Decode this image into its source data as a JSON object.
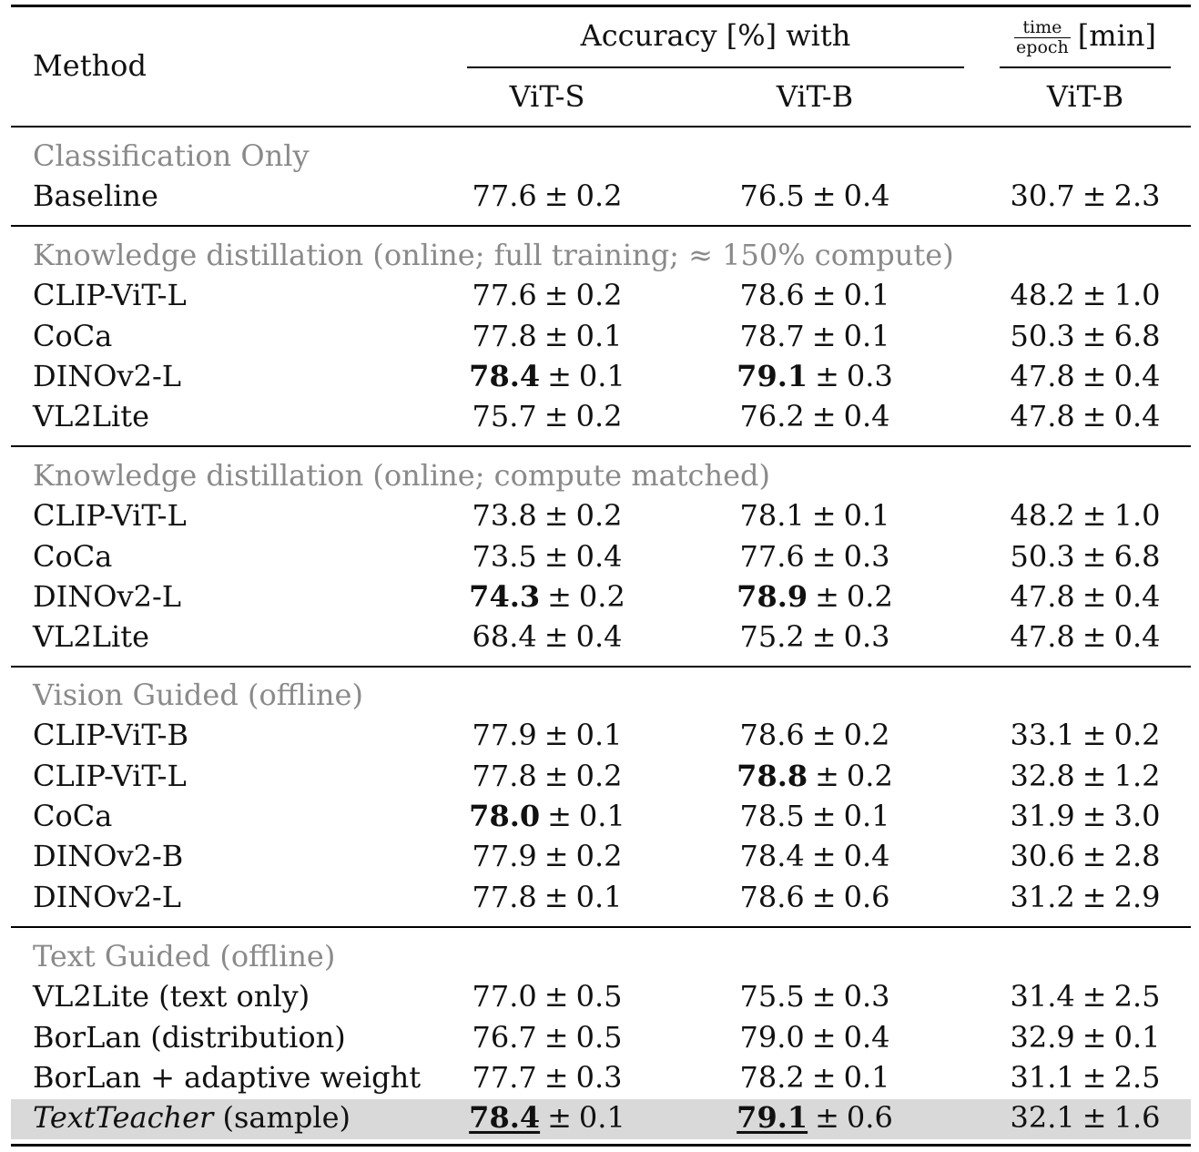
{
  "header": {
    "method": "Method",
    "accuracy": "Accuracy [%] with",
    "time_num": "time",
    "time_den": "epoch",
    "time_unit": "[min]",
    "col_vit_s": "ViT-S",
    "col_vit_b": "ViT-B",
    "col_time_vit_b": "ViT-B"
  },
  "groups": [
    {
      "title": "Classification Only",
      "rows": [
        {
          "method": "Baseline",
          "s_val": "77.6",
          "s_std": "0.2",
          "b_val": "76.5",
          "b_std": "0.4",
          "t_val": "30.7",
          "t_std": "2.3"
        }
      ]
    },
    {
      "title": "Knowledge distillation (online; full training; ≈ 150% compute)",
      "rows": [
        {
          "method": "CLIP-ViT-L",
          "s_val": "77.6",
          "s_std": "0.2",
          "b_val": "78.6",
          "b_std": "0.1",
          "t_val": "48.2",
          "t_std": "1.0"
        },
        {
          "method": "CoCa",
          "s_val": "77.8",
          "s_std": "0.1",
          "b_val": "78.7",
          "b_std": "0.1",
          "t_val": "50.3",
          "t_std": "6.8"
        },
        {
          "method": "DINOv2-L",
          "s_val": "78.4",
          "s_std": "0.1",
          "s_bold": true,
          "b_val": "79.1",
          "b_std": "0.3",
          "b_bold": true,
          "t_val": "47.8",
          "t_std": "0.4"
        },
        {
          "method": "VL2Lite",
          "s_val": "75.7",
          "s_std": "0.2",
          "b_val": "76.2",
          "b_std": "0.4",
          "t_val": "47.8",
          "t_std": "0.4"
        }
      ]
    },
    {
      "title": "Knowledge distillation (online; compute matched)",
      "rows": [
        {
          "method": "CLIP-ViT-L",
          "s_val": "73.8",
          "s_std": "0.2",
          "b_val": "78.1",
          "b_std": "0.1",
          "t_val": "48.2",
          "t_std": "1.0"
        },
        {
          "method": "CoCa",
          "s_val": "73.5",
          "s_std": "0.4",
          "b_val": "77.6",
          "b_std": "0.3",
          "t_val": "50.3",
          "t_std": "6.8"
        },
        {
          "method": "DINOv2-L",
          "s_val": "74.3",
          "s_std": "0.2",
          "s_bold": true,
          "b_val": "78.9",
          "b_std": "0.2",
          "b_bold": true,
          "t_val": "47.8",
          "t_std": "0.4"
        },
        {
          "method": "VL2Lite",
          "s_val": "68.4",
          "s_std": "0.4",
          "b_val": "75.2",
          "b_std": "0.3",
          "t_val": "47.8",
          "t_std": "0.4"
        }
      ]
    },
    {
      "title": "Vision Guided (offline)",
      "rows": [
        {
          "method": "CLIP-ViT-B",
          "s_val": "77.9",
          "s_std": "0.1",
          "b_val": "78.6",
          "b_std": "0.2",
          "t_val": "33.1",
          "t_std": "0.2"
        },
        {
          "method": "CLIP-ViT-L",
          "s_val": "77.8",
          "s_std": "0.2",
          "b_val": "78.8",
          "b_std": "0.2",
          "b_bold": true,
          "t_val": "32.8",
          "t_std": "1.2"
        },
        {
          "method": "CoCa",
          "s_val": "78.0",
          "s_std": "0.1",
          "s_bold": true,
          "b_val": "78.5",
          "b_std": "0.1",
          "t_val": "31.9",
          "t_std": "3.0"
        },
        {
          "method": "DINOv2-B",
          "s_val": "77.9",
          "s_std": "0.2",
          "b_val": "78.4",
          "b_std": "0.4",
          "t_val": "30.6",
          "t_std": "2.8"
        },
        {
          "method": "DINOv2-L",
          "s_val": "77.8",
          "s_std": "0.1",
          "b_val": "78.6",
          "b_std": "0.6",
          "t_val": "31.2",
          "t_std": "2.9"
        }
      ]
    },
    {
      "title": "Text Guided (offline)",
      "rows": [
        {
          "method": "VL2Lite (text only)",
          "s_val": "77.0",
          "s_std": "0.5",
          "b_val": "75.5",
          "b_std": "0.3",
          "t_val": "31.4",
          "t_std": "2.5"
        },
        {
          "method": "BorLan (distribution)",
          "s_val": "76.7",
          "s_std": "0.5",
          "b_val": "79.0",
          "b_std": "0.4",
          "t_val": "32.9",
          "t_std": "0.1"
        },
        {
          "method": "BorLan + adaptive weight",
          "s_val": "77.7",
          "s_std": "0.3",
          "b_val": "78.2",
          "b_std": "0.1",
          "t_val": "31.1",
          "t_std": "2.5"
        },
        {
          "method": "TextTeacher",
          "method_suffix": " (sample)",
          "italic": true,
          "highlight": true,
          "s_val": "78.4",
          "s_std": "0.1",
          "s_bold": true,
          "s_underline": true,
          "b_val": "79.1",
          "b_std": "0.6",
          "b_bold": true,
          "b_underline": true,
          "t_val": "32.1",
          "t_std": "1.6"
        }
      ]
    }
  ],
  "pm_symbol": "±"
}
